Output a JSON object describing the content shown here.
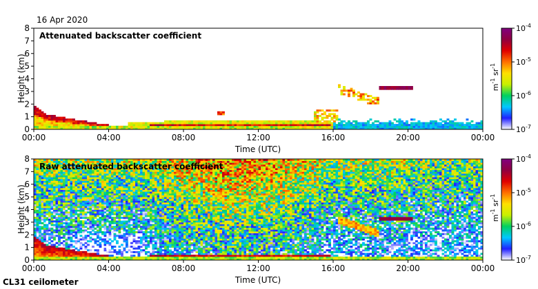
{
  "date_label": "16 Apr 2020",
  "instrument_label": "CL31 ceilometer",
  "colors": {
    "scale": [
      "#ffffff",
      "#2020ff",
      "#00c8ff",
      "#00d060",
      "#c8f000",
      "#ffe000",
      "#ff7000",
      "#e00000",
      "#900040",
      "#800080"
    ]
  },
  "chart_data": [
    {
      "type": "heatmap",
      "title": "Attenuated backscatter coefficient",
      "xlabel": "Time (UTC)",
      "ylabel": "Height (km)",
      "x_ticks": [
        "00:00",
        "04:00",
        "08:00",
        "12:00",
        "16:00",
        "20:00",
        "00:00"
      ],
      "x_range_hours": [
        0,
        24
      ],
      "y_ticks": [
        "0",
        "1",
        "2",
        "3",
        "4",
        "5",
        "6",
        "7",
        "8"
      ],
      "ylim": [
        0,
        8
      ],
      "colorbar": {
        "ticks": [
          "10",
          "10",
          "10",
          "10"
        ],
        "tick_exponents": [
          "-7",
          "-6",
          "-5",
          "-4"
        ],
        "unit_base": [
          "m",
          "sr"
        ],
        "unit_exponents": [
          "-1",
          "-1"
        ]
      }
    },
    {
      "type": "heatmap",
      "title": "Raw attenuated backscatter coefficient",
      "xlabel": "Time (UTC)",
      "ylabel": "Height (km)",
      "x_ticks": [
        "00:00",
        "04:00",
        "08:00",
        "12:00",
        "16:00",
        "20:00",
        "00:00"
      ],
      "x_range_hours": [
        0,
        24
      ],
      "y_ticks": [
        "0",
        "1",
        "2",
        "3",
        "4",
        "5",
        "6",
        "7",
        "8"
      ],
      "ylim": [
        0,
        8
      ],
      "colorbar": {
        "ticks": [
          "10",
          "10",
          "10",
          "10"
        ],
        "tick_exponents": [
          "-7",
          "-6",
          "-5",
          "-4"
        ],
        "unit_base": [
          "m",
          "sr"
        ],
        "unit_exponents": [
          "-1",
          "-1"
        ]
      }
    }
  ]
}
